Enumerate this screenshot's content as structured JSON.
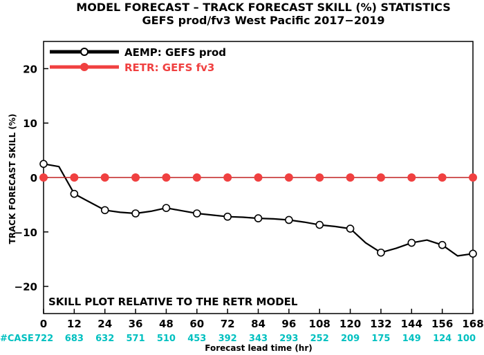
{
  "chart_data": {
    "type": "line",
    "title": "MODEL FORECAST – TRACK FORECAST SKILL (%) STATISTICS",
    "subtitle": "GEFS prod/fv3 West Pacific 2017−2019",
    "xlabel": "Forecast lead time (hr)",
    "ylabel": "TRACK FORECAST SKILL (%)",
    "xlim": [
      0,
      168
    ],
    "ylim": [
      -25,
      25
    ],
    "x_ticks": [
      0,
      12,
      24,
      36,
      48,
      60,
      72,
      84,
      96,
      108,
      120,
      132,
      144,
      156,
      168
    ],
    "x_tick_labels": [
      "0",
      "12",
      "24",
      "36",
      "48",
      "60",
      "72",
      "84",
      "96",
      "108",
      "120",
      "132",
      "144",
      "156",
      "168"
    ],
    "y_ticks": [
      -20,
      -10,
      0,
      10,
      20
    ],
    "y_tick_labels": [
      "−20",
      "−10",
      "0",
      "10",
      "20"
    ],
    "case_label": "#CASE",
    "case_counts": [
      "722",
      "683",
      "632",
      "571",
      "510",
      "453",
      "392",
      "343",
      "293",
      "252",
      "209",
      "175",
      "149",
      "124",
      "100"
    ],
    "annotation": "SKILL PLOT RELATIVE TO THE RETR MODEL",
    "legend_position": "top-left",
    "series": [
      {
        "name": "AEMP: GEFS prod",
        "color": "#000000",
        "marker": "open-circle",
        "x": [
          0,
          6,
          12,
          18,
          24,
          30,
          36,
          42,
          48,
          54,
          60,
          66,
          72,
          78,
          84,
          90,
          96,
          102,
          108,
          114,
          120,
          126,
          132,
          138,
          144,
          150,
          156,
          162,
          168
        ],
        "y": [
          2.5,
          2.0,
          -3.0,
          -4.5,
          -6.0,
          -6.4,
          -6.6,
          -6.2,
          -5.6,
          -6.1,
          -6.6,
          -6.9,
          -7.2,
          -7.3,
          -7.5,
          -7.6,
          -7.8,
          -8.2,
          -8.7,
          -9.0,
          -9.4,
          -12.0,
          -13.8,
          -13.0,
          -12.0,
          -11.5,
          -12.4,
          -14.4,
          -14.0
        ],
        "marker_x": [
          0,
          12,
          24,
          36,
          48,
          60,
          72,
          84,
          96,
          108,
          120,
          132,
          144,
          156,
          168
        ]
      },
      {
        "name": "RETR: GEFS fv3",
        "color": "#f04040",
        "marker": "filled-circle",
        "x": [
          0,
          12,
          24,
          36,
          48,
          60,
          72,
          84,
          96,
          108,
          120,
          132,
          144,
          156,
          168
        ],
        "y": [
          0,
          0,
          0,
          0,
          0,
          0,
          0,
          0,
          0,
          0,
          0,
          0,
          0,
          0,
          0
        ],
        "marker_x": [
          0,
          12,
          24,
          36,
          48,
          60,
          72,
          84,
          96,
          108,
          120,
          132,
          144,
          156,
          168
        ]
      }
    ]
  }
}
